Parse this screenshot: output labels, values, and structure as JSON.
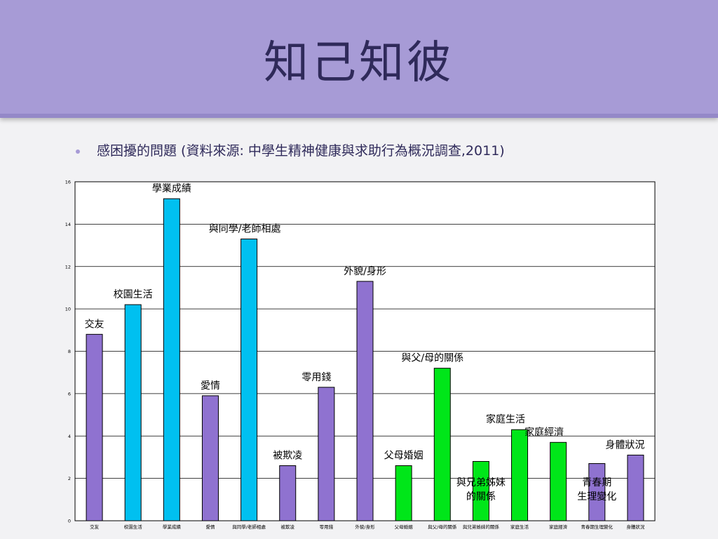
{
  "slide": {
    "title": "知己知彼",
    "bullet": "感困擾的問題 (資料來源: 中學生精神健康與求助行為概況調查,2011)"
  },
  "colors": {
    "purple": "#8f72d0",
    "cyan": "#00c0f0",
    "green": "#00e619"
  },
  "chart_data": {
    "type": "bar",
    "ylim": [
      0,
      16
    ],
    "yticks": [
      0,
      2,
      4,
      6,
      8,
      10,
      12,
      14,
      16
    ],
    "grid": true,
    "categories": [
      "交友",
      "校園生活",
      "學業成績",
      "愛情",
      "與同學/老師相處",
      "被欺凌",
      "零用錢",
      "外貌/身形",
      "父母婚姻",
      "與父/母的關係",
      "與兄弟姊妹的關係",
      "家庭生活",
      "家庭經濟",
      "青春期生理變化",
      "身體狀況"
    ],
    "values": [
      8.8,
      10.2,
      15.2,
      5.9,
      13.3,
      2.6,
      6.3,
      11.3,
      2.6,
      7.2,
      2.8,
      4.3,
      3.7,
      2.7,
      3.1
    ],
    "bar_colors": [
      "purple",
      "cyan",
      "cyan",
      "purple",
      "cyan",
      "purple",
      "purple",
      "purple",
      "green",
      "green",
      "green",
      "green",
      "green",
      "purple",
      "purple"
    ],
    "annotations": [
      {
        "index": 0,
        "lines": [
          "交友"
        ]
      },
      {
        "index": 1,
        "lines": [
          "校園生活"
        ]
      },
      {
        "index": 2,
        "lines": [
          "學業成績"
        ]
      },
      {
        "index": 3,
        "lines": [
          "愛情"
        ]
      },
      {
        "index": 4,
        "lines": [
          "與同學/老師相處"
        ]
      },
      {
        "index": 5,
        "lines": [
          "被欺凌"
        ]
      },
      {
        "index": 6,
        "lines": [
          "零用錢"
        ]
      },
      {
        "index": 7,
        "lines": [
          "外貌/身形"
        ]
      },
      {
        "index": 8,
        "lines": [
          "父母婚姻"
        ]
      },
      {
        "index": 9,
        "lines": [
          "與父/母的關係"
        ]
      },
      {
        "index": 10,
        "lines": [
          "與兄弟姊妹",
          "的關係"
        ]
      },
      {
        "index": 11,
        "lines": [
          "家庭生活"
        ]
      },
      {
        "index": 12,
        "lines": [
          "家庭經濟"
        ]
      },
      {
        "index": 13,
        "lines": [
          "青春期",
          "生理變化"
        ]
      },
      {
        "index": 14,
        "lines": [
          "身體狀況"
        ]
      }
    ]
  }
}
